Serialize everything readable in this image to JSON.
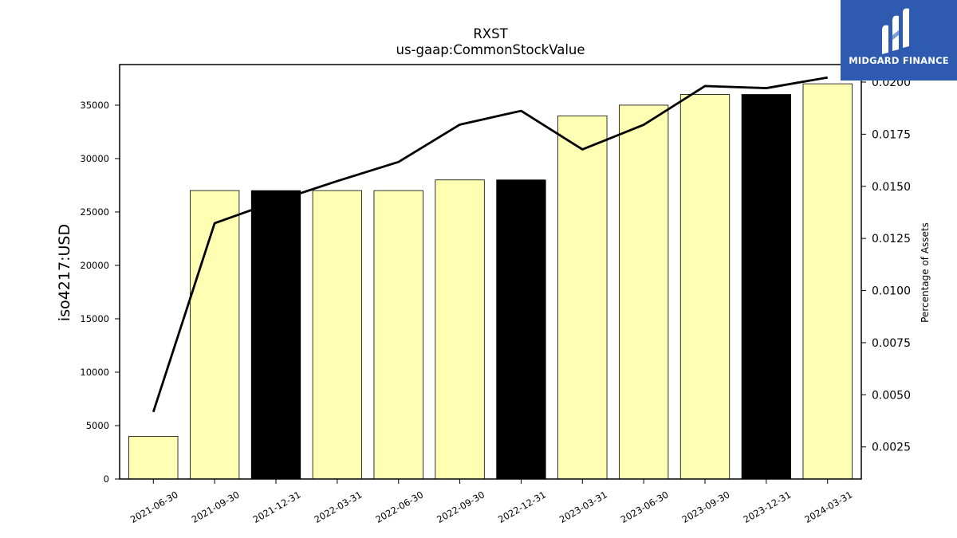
{
  "chart_data": {
    "type": "bar",
    "title": "RXST",
    "subtitle": "us-gaap:CommonStockValue",
    "ylabel": "iso4217:USD",
    "y2label": "Percentage of Assets",
    "ylim": [
      0,
      38800
    ],
    "y2lim": [
      0.00096,
      0.02084
    ],
    "yticks": [
      0,
      5000,
      10000,
      15000,
      20000,
      25000,
      30000,
      35000
    ],
    "y2ticks": [
      "0.0025",
      "0.0050",
      "0.0075",
      "0.0100",
      "0.0125",
      "0.0150",
      "0.0175",
      "0.0200"
    ],
    "categories": [
      "2021-06-30",
      "2021-09-30",
      "2021-12-31",
      "2022-03-31",
      "2022-06-30",
      "2022-09-30",
      "2022-12-31",
      "2023-03-31",
      "2023-06-30",
      "2023-09-30",
      "2023-12-31",
      "2024-03-31"
    ],
    "series": [
      {
        "type": "bar",
        "values": [
          4000,
          27000,
          27000,
          27000,
          27000,
          28000,
          28000,
          34000,
          35000,
          36000,
          36000,
          37000
        ],
        "colors": [
          "#ffffb3",
          "#ffffb3",
          "#000000",
          "#ffffb3",
          "#ffffb3",
          "#ffffb3",
          "#000000",
          "#ffffb3",
          "#ffffb3",
          "#ffffb3",
          "#000000",
          "#ffffb3"
        ]
      },
      {
        "type": "line",
        "axis": "right",
        "color": "#000000",
        "values": [
          0.00418,
          0.01323,
          0.01428,
          0.01525,
          0.01617,
          0.01796,
          0.01862,
          0.01677,
          0.01795,
          0.01981,
          0.01971,
          0.02022
        ]
      }
    ],
    "grid": false
  },
  "logo": {
    "text": "MIDGARD FINANCE",
    "color": "#2e5bb0"
  }
}
